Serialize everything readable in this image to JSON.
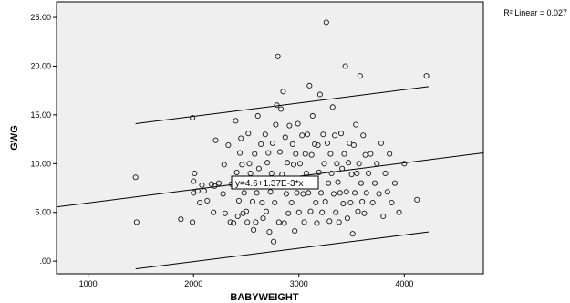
{
  "chart_data": {
    "type": "scatter",
    "xlabel": "BABYWEIGHT",
    "ylabel": "GWG",
    "xlim": [
      700,
      4750
    ],
    "ylim": [
      -1.3,
      26.6
    ],
    "xticks": [
      1000,
      2000,
      3000,
      4000
    ],
    "yticks": [
      0,
      5,
      10,
      15,
      20,
      25
    ],
    "xtick_labels": [
      "1000",
      "2000",
      "3000",
      "4000"
    ],
    "ytick_labels": [
      ".00",
      "5.00",
      "10.00",
      "15.00",
      "20.00",
      "25.00"
    ],
    "r2_label": "R² Linear = 0.027",
    "fit_equation_label": "y=4.6+1.37E-3*x",
    "fit_line": {
      "intercept": 4.6,
      "slope": 0.00137
    },
    "prediction_interval": {
      "upper": [
        [
          1450,
          14.1
        ],
        [
          4230,
          17.9
        ]
      ],
      "lower": [
        [
          1450,
          -0.8
        ],
        [
          4230,
          3.0
        ]
      ]
    },
    "grid": false,
    "legend": "none",
    "colors": {
      "plot_background": "#efefef",
      "marker_stroke": "#1a1a1a",
      "line": "#000000"
    },
    "points": [
      [
        1450,
        8.6
      ],
      [
        1460,
        4.0
      ],
      [
        1880,
        4.3
      ],
      [
        1990,
        14.7
      ],
      [
        1990,
        4.0
      ],
      [
        2000,
        8.2
      ],
      [
        2000,
        7.0
      ],
      [
        2010,
        9.0
      ],
      [
        2040,
        7.2
      ],
      [
        2060,
        6.0
      ],
      [
        2080,
        7.8
      ],
      [
        2100,
        7.2
      ],
      [
        2130,
        6.2
      ],
      [
        2170,
        7.9
      ],
      [
        2190,
        5.0
      ],
      [
        2200,
        7.7
      ],
      [
        2210,
        12.4
      ],
      [
        2240,
        8.0
      ],
      [
        2280,
        6.9
      ],
      [
        2290,
        9.9
      ],
      [
        2300,
        4.9
      ],
      [
        2330,
        11.9
      ],
      [
        2350,
        4.0
      ],
      [
        2360,
        7.9
      ],
      [
        2380,
        3.9
      ],
      [
        2400,
        14.4
      ],
      [
        2410,
        9.1
      ],
      [
        2420,
        4.6
      ],
      [
        2430,
        6.2
      ],
      [
        2440,
        11.1
      ],
      [
        2450,
        12.6
      ],
      [
        2460,
        9.9
      ],
      [
        2470,
        4.9
      ],
      [
        2480,
        7.0
      ],
      [
        2490,
        8.0
      ],
      [
        2500,
        5.1
      ],
      [
        2510,
        4.0
      ],
      [
        2520,
        13.1
      ],
      [
        2530,
        10.0
      ],
      [
        2540,
        9.0
      ],
      [
        2560,
        6.1
      ],
      [
        2570,
        3.2
      ],
      [
        2580,
        11.0
      ],
      [
        2590,
        4.0
      ],
      [
        2600,
        7.0
      ],
      [
        2610,
        14.9
      ],
      [
        2620,
        9.5
      ],
      [
        2640,
        12.0
      ],
      [
        2650,
        6.0
      ],
      [
        2660,
        4.4
      ],
      [
        2670,
        8.0
      ],
      [
        2680,
        13.0
      ],
      [
        2690,
        5.1
      ],
      [
        2700,
        10.1
      ],
      [
        2710,
        11.1
      ],
      [
        2720,
        3.0
      ],
      [
        2730,
        7.1
      ],
      [
        2740,
        9.0
      ],
      [
        2750,
        12.1
      ],
      [
        2760,
        2.0
      ],
      [
        2770,
        6.0
      ],
      [
        2780,
        14.0
      ],
      [
        2790,
        16.0
      ],
      [
        2800,
        21.0
      ],
      [
        2810,
        4.0
      ],
      [
        2820,
        11.2
      ],
      [
        2830,
        15.6
      ],
      [
        2840,
        8.9
      ],
      [
        2850,
        17.4
      ],
      [
        2860,
        3.9
      ],
      [
        2870,
        12.7
      ],
      [
        2880,
        6.9
      ],
      [
        2890,
        10.1
      ],
      [
        2900,
        4.9
      ],
      [
        2910,
        13.9
      ],
      [
        2920,
        8.0
      ],
      [
        2930,
        6.0
      ],
      [
        2940,
        12.0
      ],
      [
        2950,
        9.9
      ],
      [
        2960,
        3.1
      ],
      [
        2970,
        11.0
      ],
      [
        2980,
        7.0
      ],
      [
        2990,
        14.1
      ],
      [
        3000,
        5.0
      ],
      [
        3010,
        10.0
      ],
      [
        3020,
        8.0
      ],
      [
        3030,
        12.9
      ],
      [
        3040,
        6.9
      ],
      [
        3050,
        4.0
      ],
      [
        3060,
        11.0
      ],
      [
        3070,
        9.0
      ],
      [
        3080,
        13.0
      ],
      [
        3090,
        7.0
      ],
      [
        3100,
        18.0
      ],
      [
        3110,
        5.1
      ],
      [
        3120,
        10.9
      ],
      [
        3130,
        14.9
      ],
      [
        3140,
        8.1
      ],
      [
        3150,
        12.0
      ],
      [
        3160,
        6.0
      ],
      [
        3170,
        3.9
      ],
      [
        3180,
        11.9
      ],
      [
        3190,
        9.1
      ],
      [
        3200,
        17.1
      ],
      [
        3210,
        7.0
      ],
      [
        3220,
        5.0
      ],
      [
        3230,
        13.0
      ],
      [
        3240,
        10.0
      ],
      [
        3250,
        6.1
      ],
      [
        3260,
        24.5
      ],
      [
        3270,
        12.1
      ],
      [
        3280,
        8.0
      ],
      [
        3290,
        4.1
      ],
      [
        3300,
        11.0
      ],
      [
        3310,
        9.0
      ],
      [
        3320,
        15.8
      ],
      [
        3330,
        6.9
      ],
      [
        3340,
        12.9
      ],
      [
        3350,
        5.0
      ],
      [
        3360,
        10.0
      ],
      [
        3370,
        8.1
      ],
      [
        3380,
        4.0
      ],
      [
        3390,
        7.0
      ],
      [
        3400,
        13.1
      ],
      [
        3410,
        9.5
      ],
      [
        3420,
        5.9
      ],
      [
        3430,
        11.0
      ],
      [
        3440,
        20.0
      ],
      [
        3450,
        7.1
      ],
      [
        3460,
        4.4
      ],
      [
        3470,
        10.1
      ],
      [
        3480,
        12.1
      ],
      [
        3490,
        6.0
      ],
      [
        3500,
        8.9
      ],
      [
        3510,
        2.8
      ],
      [
        3520,
        11.9
      ],
      [
        3530,
        7.0
      ],
      [
        3540,
        14.0
      ],
      [
        3550,
        9.0
      ],
      [
        3560,
        5.1
      ],
      [
        3570,
        10.0
      ],
      [
        3580,
        19.0
      ],
      [
        3590,
        8.0
      ],
      [
        3600,
        6.1
      ],
      [
        3610,
        12.9
      ],
      [
        3620,
        4.9
      ],
      [
        3630,
        10.9
      ],
      [
        3640,
        7.0
      ],
      [
        3660,
        9.0
      ],
      [
        3680,
        11.0
      ],
      [
        3700,
        6.0
      ],
      [
        3720,
        8.0
      ],
      [
        3740,
        10.0
      ],
      [
        3760,
        6.9
      ],
      [
        3780,
        12.1
      ],
      [
        3800,
        4.6
      ],
      [
        3820,
        9.0
      ],
      [
        3840,
        7.1
      ],
      [
        3860,
        11.0
      ],
      [
        3880,
        6.0
      ],
      [
        3910,
        8.0
      ],
      [
        3950,
        5.0
      ],
      [
        4000,
        10.0
      ],
      [
        4120,
        6.3
      ],
      [
        4210,
        19.0
      ]
    ]
  }
}
